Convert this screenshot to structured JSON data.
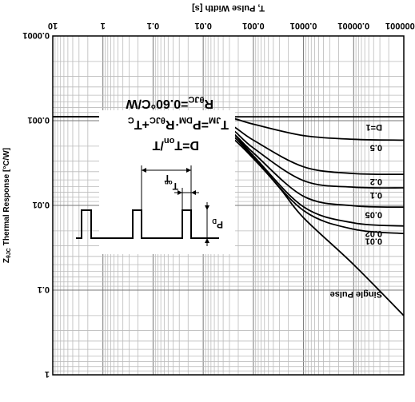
{
  "chart_data": {
    "type": "line",
    "title": "",
    "orientation_note_text": "",
    "xlabel": "T, Pulse Width [s]",
    "ylabel": "Thermal Response [°C/W]",
    "ylabel_symbol": "Z",
    "ylabel_subscript": "θJC",
    "x_scale": "log",
    "y_scale": "log",
    "xlim": [
      1e-06,
      10
    ],
    "ylim": [
      0.0001,
      1
    ],
    "x_ticks": [
      1e-06,
      1e-05,
      0.0001,
      0.001,
      0.01,
      0.1,
      1,
      10
    ],
    "x_tick_labels": [
      "0.000001",
      "0.00001",
      "0.0001",
      "0.001",
      "0.01",
      "0.1",
      "1",
      "10"
    ],
    "y_ticks": [
      0.0001,
      0.001,
      0.01,
      0.1,
      1
    ],
    "y_tick_labels": [
      "0.0001",
      "0.001",
      "0.01",
      "0.1",
      "1"
    ],
    "grid": true,
    "image_rotated_180": true,
    "series": [
      {
        "name": "D=1",
        "x": [
          1e-06,
          0.01,
          0.1,
          1,
          10
        ],
        "y": [
          0.0009,
          0.0009,
          0.0009,
          0.0009,
          0.0009
        ]
      },
      {
        "name": "0.5",
        "x": [
          1e-06,
          1e-05,
          0.0001,
          0.001,
          0.003,
          0.01,
          0.03,
          0.1,
          1,
          10
        ],
        "y": [
          0.0017,
          0.00166,
          0.0015,
          0.0011,
          0.00092,
          0.0009,
          0.0009,
          0.0009,
          0.0009,
          0.0009
        ]
      },
      {
        "name": "0.2",
        "x": [
          1e-06,
          1e-05,
          0.0001,
          0.001,
          0.003,
          0.01,
          0.03,
          0.1,
          1,
          10
        ],
        "y": [
          0.0043,
          0.0042,
          0.0035,
          0.0017,
          0.0011,
          0.00093,
          0.0009,
          0.0009,
          0.0009,
          0.0009
        ]
      },
      {
        "name": "0.1",
        "x": [
          1e-06,
          1e-05,
          0.0001,
          0.001,
          0.003,
          0.01,
          0.03,
          0.1,
          1,
          10
        ],
        "y": [
          0.0062,
          0.0061,
          0.0051,
          0.0021,
          0.0012,
          0.00095,
          0.0009,
          0.0009,
          0.0009,
          0.0009
        ]
      },
      {
        "name": "0.05",
        "x": [
          1e-06,
          1e-05,
          0.0001,
          0.001,
          0.003,
          0.01,
          0.03,
          0.1,
          1,
          10
        ],
        "y": [
          0.0105,
          0.0101,
          0.0078,
          0.0024,
          0.0013,
          0.00097,
          0.0009,
          0.0009,
          0.0009,
          0.0009
        ]
      },
      {
        "name": "0.02",
        "x": [
          1e-06,
          1e-05,
          0.0001,
          0.001,
          0.003,
          0.01,
          0.03,
          0.1,
          1,
          10
        ],
        "y": [
          0.0175,
          0.0161,
          0.0104,
          0.0026,
          0.0013,
          0.00098,
          0.0009,
          0.0009,
          0.0009,
          0.0009
        ]
      },
      {
        "name": "0.01",
        "x": [
          1e-06,
          1e-05,
          0.0001,
          0.001,
          0.003,
          0.01,
          0.03,
          0.1,
          1,
          10
        ],
        "y": [
          0.0215,
          0.0191,
          0.0115,
          0.0027,
          0.0014,
          0.00099,
          0.0009,
          0.0009,
          0.0009,
          0.0009
        ]
      },
      {
        "name": "Single Pulse",
        "x": [
          1e-06,
          1e-05,
          0.0001,
          0.0003,
          0.001,
          0.003,
          0.01,
          0.03,
          0.1,
          1,
          10
        ],
        "y": [
          0.2,
          0.05,
          0.014,
          0.0062,
          0.0028,
          0.0015,
          0.001,
          0.0009,
          0.0009,
          0.0009,
          0.0009
        ]
      }
    ],
    "annotations": {
      "formula_rth": "RθJC=0.60°C/W",
      "formula_tjm": "TJM=PDM·RθJC+TC",
      "formula_duty": "D=Ton/T",
      "pulse_amplitude": "PD",
      "pulse_on": "Ton",
      "pulse_period": "T"
    }
  },
  "labels": {
    "rth_main": "R",
    "rth_sub": "θJC",
    "rth_value": "=0.60°C/W",
    "tjm_main": "T",
    "tjm_sub": "JM",
    "tjm_eq": "=P",
    "tjm_sub2": "DM",
    "tjm_mid": "·R",
    "tjm_sub3": "θJC",
    "tjm_plus": "+T",
    "tjm_sub4": "C",
    "duty_main": "D=T",
    "duty_sub": "on",
    "duty_end": "/T",
    "pd_main": "P",
    "pd_sub": "D",
    "ton_main": "T",
    "ton_sub": "on",
    "period": "T",
    "ylabel_symbol": "Z",
    "ylabel_subscript": "θJC",
    "ylabel_text": "Thermal Response [°C/W]"
  }
}
